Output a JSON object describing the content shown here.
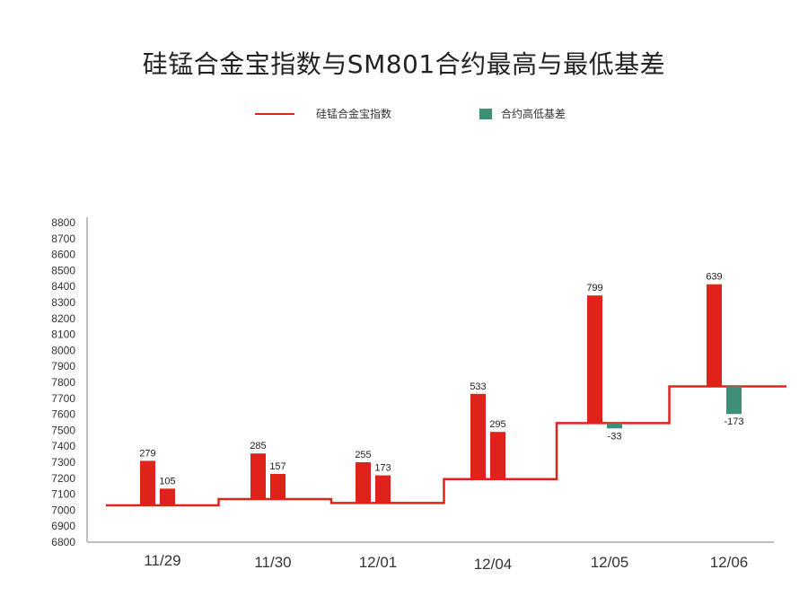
{
  "chart_data": {
    "type": "bar",
    "title": "硅锰合金宝指数与SM801合约最高与最低基差",
    "categories": [
      "11/29",
      "11/30",
      "12/01",
      "12/04",
      "12/05",
      "12/06"
    ],
    "series": [
      {
        "name": "硅锰合金宝指数",
        "kind": "step-line",
        "values": [
          7030,
          7070,
          7045,
          7195,
          7545,
          7775
        ]
      },
      {
        "name": "合约高低基差",
        "kind": "bar",
        "high_basis": [
          279,
          285,
          255,
          533,
          799,
          639
        ],
        "low_basis": [
          105,
          157,
          173,
          295,
          -33,
          -173
        ]
      }
    ],
    "ylim": [
      6800,
      8800
    ],
    "yticks": [
      6800,
      6900,
      7000,
      7100,
      7200,
      7300,
      7400,
      7500,
      7600,
      7700,
      7800,
      7900,
      8000,
      8100,
      8200,
      8300,
      8400,
      8500,
      8600,
      8700,
      8800
    ],
    "legend_position": "top-center",
    "grid": false
  },
  "colors": {
    "index_line": "#e0231a",
    "positive_bar": "#e0231a",
    "negative_bar": "#3f8f78",
    "legend_basis": "#3f8f78",
    "axis": "#bfbfbf"
  },
  "legend": {
    "index_label": "硅锰合金宝指数",
    "basis_label": "合约高低基差"
  }
}
